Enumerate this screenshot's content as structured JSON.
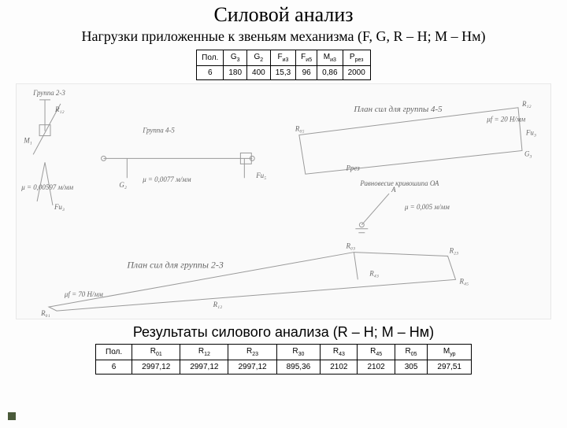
{
  "title": "Силовой анализ",
  "subtitle": "Нагрузки приложенные к звеньям механизма (F, G, R – H; M – Нм)",
  "table1": {
    "columns": [
      "Пол.",
      "G₃",
      "G₂",
      "Fи₃",
      "Fи₅",
      "Ми₃",
      "Pрез"
    ],
    "columns_html": [
      "Пол.",
      "G<sub>3</sub>",
      "G<sub>2</sub>",
      "F<sub>и3</sub>",
      "F<sub>и5</sub>",
      "M<sub>и3</sub>",
      "P<sub>рез</sub>"
    ],
    "rows": [
      [
        "6",
        "180",
        "400",
        "15,3",
        "96",
        "0,86",
        "2000"
      ]
    ]
  },
  "results_title": "Результаты силового анализа (R – H; M – Нм)",
  "table2": {
    "columns": [
      "Пол.",
      "R₀₁",
      "R₁₂",
      "R₂₃",
      "R₃₀",
      "R₄₃",
      "R₄₅",
      "R₀₅",
      "Mур"
    ],
    "columns_html": [
      "Пол.",
      "R<sub>01</sub>",
      "R<sub>12</sub>",
      "R<sub>23</sub>",
      "R<sub>30</sub>",
      "R<sub>43</sub>",
      "R<sub>45</sub>",
      "R<sub>05</sub>",
      "M<sub>ур</sub>"
    ],
    "rows": [
      [
        "6",
        "2997,12",
        "2997,12",
        "2997,12",
        "895,36",
        "2102",
        "2102",
        "305",
        "297,51"
      ]
    ]
  },
  "diagram_labels": {
    "group23": "Группа 2-3",
    "group45": "Группа 4-5",
    "plan45": "План сил для группы 4-5",
    "plan23": "План сил для группы 2-3",
    "rav": "Равновесие кривошипа ОА",
    "mu_f": "μf = 20 Н/мм",
    "mu_f2": "μf = 70 Н/мм",
    "mu1": "μ = 0,0077 м/мм",
    "mu2": "μ = 0,00597 м/мм",
    "mu3": "μ = 0,005 м/мм",
    "R12": "R₁₂",
    "R05": "R₀₅",
    "R45": "R₄₅",
    "R43": "R₄₃",
    "G3p": "G₃",
    "Fn5": "Fи₅",
    "Prez": "Pрез",
    "R01": "R₀₁",
    "R03": "R₀₃",
    "Fn3": "Fи₃",
    "G2": "G₂",
    "G3": "G₃",
    "R23": "R₂₃",
    "M1": "M₁",
    "A": "A",
    "B": "B"
  },
  "colors": {
    "bg": "#fdfdfd",
    "diagram_bg": "#fafafa",
    "stroke": "#9a9a9a",
    "label": "#666666",
    "bullet": "#4a5a3a"
  },
  "fonts": {
    "title_pt": 26,
    "subtitle_pt": 18,
    "table_pt": 10,
    "label_pt": 9
  }
}
